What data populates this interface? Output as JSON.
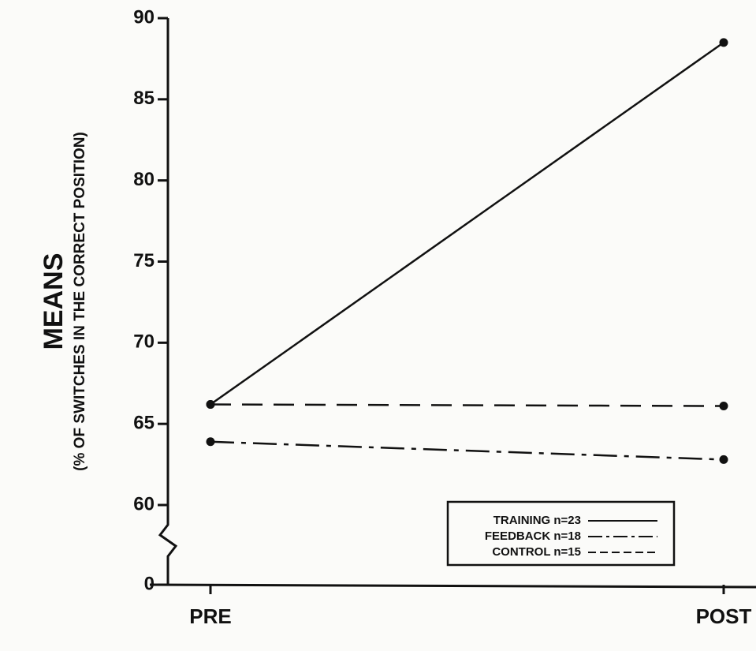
{
  "chart_data": {
    "type": "line",
    "y_label": "MEANS",
    "y_sublabel": "(% OF SWITCHES IN THE CORRECT POSITION)",
    "categories": [
      "PRE",
      "POST"
    ],
    "series": [
      {
        "name": "TRAINING n=23",
        "color": "#111111",
        "dash": "solid",
        "values": [
          66.2,
          88.5
        ]
      },
      {
        "name": "FEEDBACK n=18",
        "color": "#111111",
        "dash": "dashdot",
        "values": [
          63.9,
          62.8
        ]
      },
      {
        "name": "CONTROL n=15",
        "color": "#111111",
        "dash": "dashed",
        "values": [
          66.2,
          66.1
        ]
      }
    ],
    "ylim": [
      0,
      90
    ],
    "axis_break": [
      0,
      60
    ],
    "yticks": [
      0,
      60,
      65,
      70,
      75,
      80,
      85,
      90
    ],
    "grid": false,
    "legend": "lower right"
  }
}
